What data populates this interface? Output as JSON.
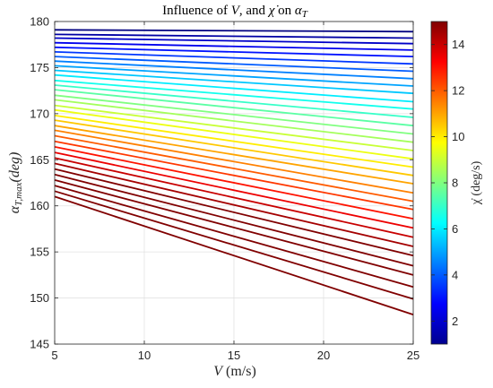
{
  "chart_data": {
    "type": "line",
    "title_parts": [
      "Influence of ",
      "V",
      ", and ",
      "χ̇",
      " on ",
      "α",
      "T"
    ],
    "xlabel_parts": [
      "V",
      " (m/s)"
    ],
    "ylabel_parts": [
      "α",
      "T,max",
      "(deg)"
    ],
    "xlim": [
      5,
      25
    ],
    "ylim": [
      145,
      180
    ],
    "xticks": [
      "5",
      "10",
      "15",
      "20",
      "25"
    ],
    "yticks": [
      "145",
      "150",
      "155",
      "160",
      "165",
      "170",
      "175",
      "180"
    ],
    "grid": true,
    "colorbar": {
      "label": "χ̇ (deg/s)",
      "range": [
        1,
        15
      ],
      "ticks": [
        "2",
        "4",
        "6",
        "8",
        "10",
        "12",
        "14"
      ],
      "colormap": "jet"
    },
    "x": [
      5,
      25
    ],
    "series": [
      {
        "chi_dot": 1.0,
        "values": [
          179.1,
          178.9
        ]
      },
      {
        "chi_dot": 1.5,
        "values": [
          178.6,
          178.2
        ]
      },
      {
        "chi_dot": 2.0,
        "values": [
          178.2,
          177.6
        ]
      },
      {
        "chi_dot": 2.5,
        "values": [
          177.7,
          176.9
        ]
      },
      {
        "chi_dot": 3.0,
        "values": [
          177.2,
          176.2
        ]
      },
      {
        "chi_dot": 3.5,
        "values": [
          176.7,
          175.4
        ]
      },
      {
        "chi_dot": 4.0,
        "values": [
          176.2,
          174.6
        ]
      },
      {
        "chi_dot": 4.5,
        "values": [
          175.7,
          173.8
        ]
      },
      {
        "chi_dot": 5.0,
        "values": [
          175.2,
          173.0
        ]
      },
      {
        "chi_dot": 5.5,
        "values": [
          174.7,
          172.2
        ]
      },
      {
        "chi_dot": 6.0,
        "values": [
          174.2,
          171.3
        ]
      },
      {
        "chi_dot": 6.5,
        "values": [
          173.6,
          170.5
        ]
      },
      {
        "chi_dot": 7.0,
        "values": [
          173.1,
          169.6
        ]
      },
      {
        "chi_dot": 7.5,
        "values": [
          172.6,
          168.7
        ]
      },
      {
        "chi_dot": 8.0,
        "values": [
          172.0,
          167.8
        ]
      },
      {
        "chi_dot": 8.5,
        "values": [
          171.5,
          166.9
        ]
      },
      {
        "chi_dot": 9.0,
        "values": [
          170.9,
          166.0
        ]
      },
      {
        "chi_dot": 9.5,
        "values": [
          170.4,
          165.1
        ]
      },
      {
        "chi_dot": 10.0,
        "values": [
          169.8,
          164.2
        ]
      },
      {
        "chi_dot": 10.5,
        "values": [
          169.3,
          163.3
        ]
      },
      {
        "chi_dot": 11.0,
        "values": [
          168.7,
          162.4
        ]
      },
      {
        "chi_dot": 11.5,
        "values": [
          168.2,
          161.4
        ]
      },
      {
        "chi_dot": 12.0,
        "values": [
          167.6,
          160.5
        ]
      },
      {
        "chi_dot": 12.5,
        "values": [
          167.0,
          159.6
        ]
      },
      {
        "chi_dot": 13.0,
        "values": [
          166.4,
          158.6
        ]
      },
      {
        "chi_dot": 13.5,
        "values": [
          165.8,
          157.6
        ]
      },
      {
        "chi_dot": 14.0,
        "values": [
          165.2,
          156.6
        ]
      },
      {
        "chi_dot": 14.5,
        "values": [
          164.6,
          155.6
        ]
      },
      {
        "chi_dot": 15.0,
        "values": [
          164.0,
          154.6
        ]
      },
      {
        "chi_dot": 15.5,
        "values": [
          163.4,
          153.5
        ]
      },
      {
        "chi_dot": 16.0,
        "values": [
          162.8,
          152.5
        ]
      },
      {
        "chi_dot": 16.5,
        "values": [
          162.2,
          151.2
        ]
      },
      {
        "chi_dot": 17.0,
        "values": [
          161.6,
          149.9
        ]
      },
      {
        "chi_dot": 17.5,
        "values": [
          161.0,
          148.2
        ]
      }
    ]
  }
}
